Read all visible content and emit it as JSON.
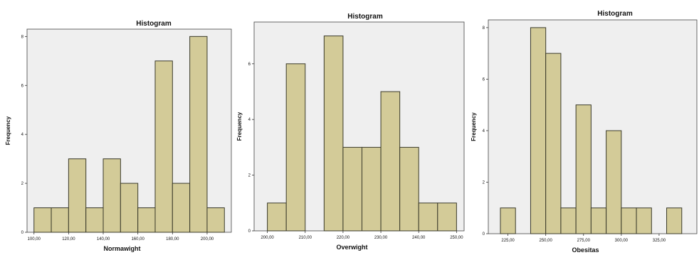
{
  "chart_data": [
    {
      "type": "bar",
      "title": "Histogram",
      "xlabel": "Normawight",
      "ylabel": "Frequency",
      "x_tick_labels": [
        "100,00",
        "120,00",
        "140,00",
        "160,00",
        "180,00",
        "200,00"
      ],
      "x_ticks": [
        100,
        120,
        140,
        160,
        180,
        200
      ],
      "y_tick_labels": [
        "0",
        "2",
        "4",
        "6",
        "8"
      ],
      "y_ticks": [
        0,
        2,
        4,
        6,
        8
      ],
      "xlim": [
        96,
        214
      ],
      "ylim": [
        0,
        8.3
      ],
      "bins": [
        {
          "x0": 100,
          "x1": 110,
          "count": 1
        },
        {
          "x0": 110,
          "x1": 120,
          "count": 1
        },
        {
          "x0": 120,
          "x1": 130,
          "count": 3
        },
        {
          "x0": 130,
          "x1": 140,
          "count": 1
        },
        {
          "x0": 140,
          "x1": 150,
          "count": 3
        },
        {
          "x0": 150,
          "x1": 160,
          "count": 2
        },
        {
          "x0": 160,
          "x1": 170,
          "count": 1
        },
        {
          "x0": 170,
          "x1": 180,
          "count": 7
        },
        {
          "x0": 180,
          "x1": 190,
          "count": 2
        },
        {
          "x0": 190,
          "x1": 200,
          "count": 8
        },
        {
          "x0": 200,
          "x1": 210,
          "count": 1
        }
      ]
    },
    {
      "type": "bar",
      "title": "Histogram",
      "xlabel": "Overwight",
      "ylabel": "Frequency",
      "x_tick_labels": [
        "200,00",
        "210,00",
        "220,00",
        "230,00",
        "240,00",
        "250,00"
      ],
      "x_ticks": [
        200,
        210,
        220,
        230,
        240,
        250
      ],
      "y_tick_labels": [
        "0",
        "2",
        "4",
        "6"
      ],
      "y_ticks": [
        0,
        2,
        4,
        6
      ],
      "xlim": [
        196.5,
        252
      ],
      "ylim": [
        0,
        7.5
      ],
      "bins": [
        {
          "x0": 200,
          "x1": 205,
          "count": 1
        },
        {
          "x0": 205,
          "x1": 210,
          "count": 6
        },
        {
          "x0": 215,
          "x1": 220,
          "count": 7
        },
        {
          "x0": 220,
          "x1": 225,
          "count": 3
        },
        {
          "x0": 225,
          "x1": 230,
          "count": 3
        },
        {
          "x0": 230,
          "x1": 235,
          "count": 5
        },
        {
          "x0": 235,
          "x1": 240,
          "count": 3
        },
        {
          "x0": 240,
          "x1": 245,
          "count": 1
        },
        {
          "x0": 245,
          "x1": 250,
          "count": 1
        }
      ]
    },
    {
      "type": "bar",
      "title": "Histogram",
      "xlabel": "Obesitas",
      "ylabel": "Frequency",
      "x_tick_labels": [
        "225,00",
        "250,00",
        "275,00",
        "300,00",
        "325,00"
      ],
      "x_ticks": [
        225,
        250,
        275,
        300,
        325
      ],
      "y_tick_labels": [
        "0",
        "2",
        "4",
        "6",
        "8"
      ],
      "y_ticks": [
        0,
        2,
        4,
        6,
        8
      ],
      "xlim": [
        212,
        350
      ],
      "ylim": [
        0,
        8.3
      ],
      "bins": [
        {
          "x0": 220,
          "x1": 230,
          "count": 1
        },
        {
          "x0": 240,
          "x1": 250,
          "count": 8
        },
        {
          "x0": 250,
          "x1": 260,
          "count": 7
        },
        {
          "x0": 260,
          "x1": 270,
          "count": 1
        },
        {
          "x0": 270,
          "x1": 280,
          "count": 5
        },
        {
          "x0": 280,
          "x1": 290,
          "count": 1
        },
        {
          "x0": 290,
          "x1": 300,
          "count": 4
        },
        {
          "x0": 300,
          "x1": 310,
          "count": 1
        },
        {
          "x0": 310,
          "x1": 320,
          "count": 1
        },
        {
          "x0": 330,
          "x1": 340,
          "count": 1
        }
      ]
    }
  ]
}
